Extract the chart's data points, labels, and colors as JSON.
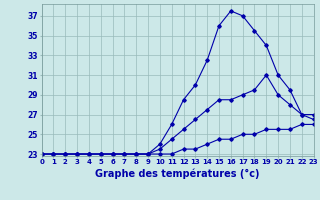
{
  "xlabel": "Graphe des températures (°c)",
  "x": [
    0,
    1,
    2,
    3,
    4,
    5,
    6,
    7,
    8,
    9,
    10,
    11,
    12,
    13,
    14,
    15,
    16,
    17,
    18,
    19,
    20,
    21,
    22,
    23
  ],
  "line1": [
    23,
    23,
    23,
    23,
    23,
    23,
    23,
    23,
    23,
    23,
    23,
    23,
    23.5,
    23.5,
    24,
    24.5,
    24.5,
    25,
    25,
    25.5,
    25.5,
    25.5,
    26,
    26
  ],
  "line2": [
    23,
    23,
    23,
    23,
    23,
    23,
    23,
    23,
    23,
    23,
    23.5,
    24.5,
    25.5,
    26.5,
    27.5,
    28.5,
    28.5,
    29,
    29.5,
    31,
    29,
    28,
    27,
    26.5
  ],
  "line3": [
    23,
    23,
    23,
    23,
    23,
    23,
    23,
    23,
    23,
    23,
    24,
    26,
    28.5,
    30,
    32.5,
    36,
    37.5,
    37,
    35.5,
    34,
    31,
    29.5,
    27,
    27
  ],
  "bg_color": "#cce8e8",
  "line_color": "#0000aa",
  "grid_color": "#99bbbb",
  "xlim": [
    0,
    23
  ],
  "ylim": [
    22.8,
    38.2
  ],
  "ytick_vals": [
    23,
    25,
    27,
    29,
    31,
    33,
    35,
    37
  ],
  "xtick_fontsize": 5,
  "ytick_fontsize": 5.5,
  "xlabel_fontsize": 7,
  "marker": "D",
  "markersize": 1.8,
  "linewidth": 0.8
}
